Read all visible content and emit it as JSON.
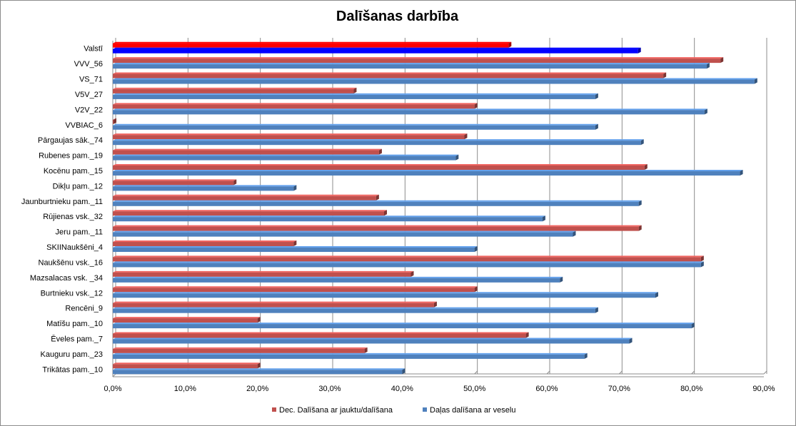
{
  "chart_data": {
    "type": "bar",
    "orientation": "horizontal",
    "title": "Dalīšanas darbība",
    "xlabel": "",
    "ylabel": "",
    "xlim": [
      0,
      90
    ],
    "x_ticks": [
      "0,0%",
      "10,0%",
      "20,0%",
      "30,0%",
      "40,0%",
      "50,0%",
      "60,0%",
      "70,0%",
      "80,0%",
      "90,0%"
    ],
    "grid": "vertical",
    "legend_position": "bottom",
    "categories": [
      "Valstī",
      "VVV_56",
      "VS_71",
      "V5V_27",
      "V2V_22",
      "VVBIAC_6",
      "Pārgaujas sāk._74",
      "Rubenes pam._19",
      "Kocēnu pam._15",
      "Dikļu pam._12",
      "Jaunburtnieku pam._11",
      "Rūjienas vsk._32",
      "Jeru pam._11",
      "SKIINaukšēni_4",
      "Naukšēnu vsk._16",
      "Mazsalacas vsk. _34",
      "Burtnieku vsk._12",
      "Rencēni_9",
      "Matīšu pam._10",
      "Ēveles pam._7",
      "Kauguru pam._23",
      "Trikātas pam._10"
    ],
    "series": [
      {
        "name": "Dec. Dalīšana ar jauktu/dalīšana",
        "color": "#c0504d",
        "values": [
          54.7,
          84.0,
          76.1,
          33.3,
          50.0,
          0.1,
          48.6,
          36.8,
          73.5,
          16.7,
          36.4,
          37.5,
          72.7,
          25.0,
          81.3,
          41.2,
          50.0,
          44.4,
          20.0,
          57.1,
          34.8,
          20.0
        ]
      },
      {
        "name": "Daļas dalīšana ar veselu",
        "color": "#4f81bd",
        "values": [
          72.6,
          82.1,
          88.7,
          66.7,
          81.8,
          66.7,
          73.0,
          47.4,
          86.7,
          25.0,
          72.7,
          59.4,
          63.6,
          50.0,
          81.3,
          61.8,
          75.0,
          66.7,
          80.0,
          71.4,
          65.2,
          40.0
        ]
      }
    ],
    "highlight": {
      "category": "Valstī",
      "colors": [
        "#ff0000",
        "#0000ff"
      ]
    }
  }
}
